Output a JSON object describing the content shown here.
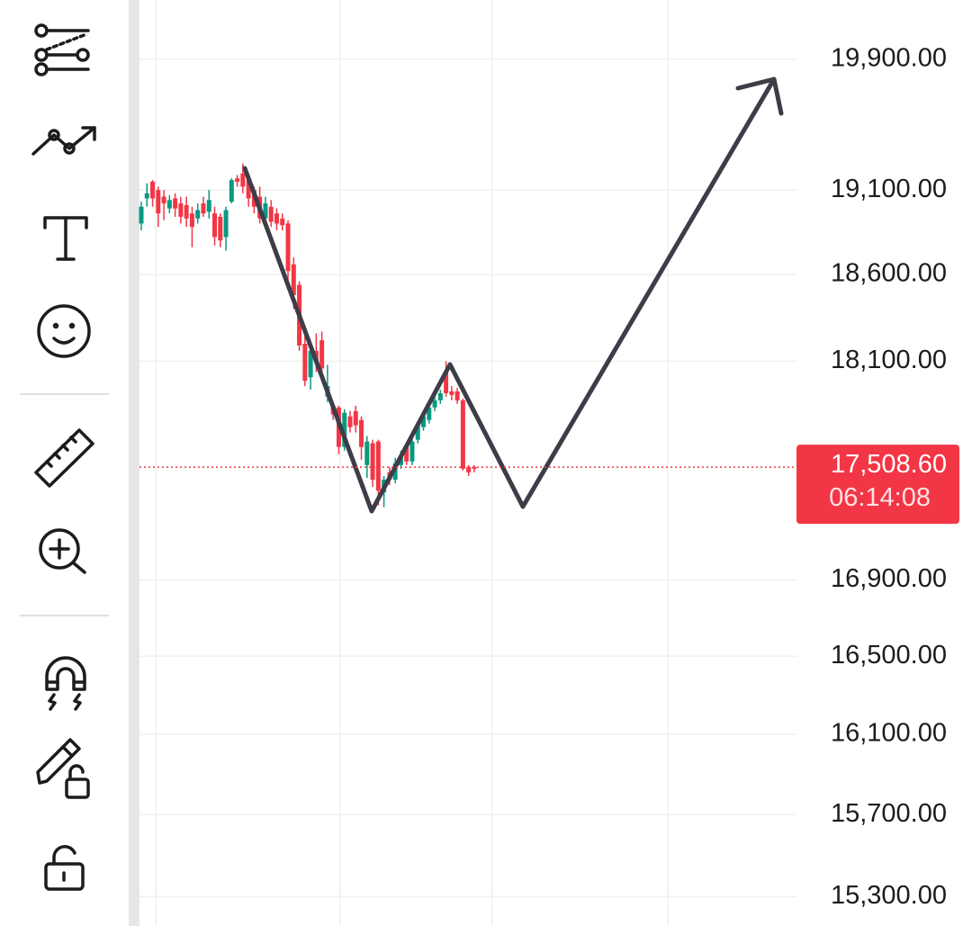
{
  "chart_data": {
    "type": "candlestick",
    "log_scale": true,
    "grid": true,
    "ylim": [
      15160,
      20274
    ],
    "yticks": [
      {
        "value": 19900,
        "label": "19,900.00"
      },
      {
        "value": 19100,
        "label": "19,100.00"
      },
      {
        "value": 18600,
        "label": "18,600.00"
      },
      {
        "value": 18100,
        "label": "18,100.00"
      },
      {
        "value": 16900,
        "label": "16,900.00"
      },
      {
        "value": 16500,
        "label": "16,500.00"
      },
      {
        "value": 16100,
        "label": "16,100.00"
      },
      {
        "value": 15700,
        "label": "15,700.00"
      },
      {
        "value": 15300,
        "label": "15,300.00"
      }
    ],
    "up_color": "#089981",
    "down_color": "#f23645",
    "open": [
      18900,
      19050,
      19150,
      19100,
      19060,
      18990,
      19050,
      19020,
      19010,
      18960,
      18930,
      19020,
      18970,
      18960,
      18940,
      18820,
      19030,
      19170,
      19200,
      19160,
      19100,
      19060,
      18930,
      19000,
      18960,
      18930,
      18900,
      18660,
      18540,
      18200,
      18010,
      18160,
      18220,
      17900,
      17850,
      17840,
      17620,
      17790,
      17820,
      17770,
      17520,
      17640,
      17650,
      17370,
      17480,
      17440,
      17520,
      17620,
      17540,
      17660,
      17730,
      17770,
      17840,
      17880,
      18040,
      17930,
      17930,
      17880,
      17510,
      17510
    ],
    "high": [
      19030,
      19140,
      19160,
      19120,
      19100,
      19070,
      19080,
      19060,
      19060,
      19000,
      19020,
      19060,
      19100,
      19000,
      18960,
      19000,
      19170,
      19190,
      19260,
      19200,
      19120,
      19120,
      19060,
      19040,
      18990,
      18960,
      18920,
      18700,
      18560,
      18260,
      18220,
      18260,
      18270,
      18080,
      17870,
      17850,
      17830,
      17820,
      17850,
      17790,
      17680,
      17660,
      17660,
      17460,
      17510,
      17560,
      17600,
      17640,
      17680,
      17760,
      17810,
      17860,
      17900,
      17940,
      18100,
      17960,
      17950,
      17890,
      17520,
      17520
    ],
    "low": [
      18860,
      19000,
      19000,
      18880,
      18920,
      18960,
      18940,
      18900,
      18880,
      18760,
      18900,
      18940,
      18930,
      18770,
      18760,
      18740,
      19020,
      19120,
      19080,
      19000,
      18960,
      18900,
      18900,
      18880,
      18860,
      18860,
      18560,
      18400,
      18160,
      17960,
      17940,
      18040,
      18020,
      17870,
      17770,
      17580,
      17600,
      17700,
      17700,
      17550,
      17450,
      17400,
      17300,
      17290,
      17410,
      17420,
      17500,
      17520,
      17520,
      17640,
      17710,
      17750,
      17820,
      17860,
      17900,
      17880,
      17860,
      17490,
      17460,
      17480
    ],
    "close": [
      19000,
      19080,
      19050,
      18960,
      19020,
      19040,
      18990,
      18940,
      18930,
      18880,
      18980,
      18960,
      19040,
      18820,
      18800,
      18980,
      19160,
      19150,
      19120,
      19050,
      19000,
      18930,
      19020,
      18910,
      18900,
      18890,
      18620,
      18480,
      18190,
      17990,
      18160,
      18100,
      18060,
      17960,
      17800,
      17620,
      17810,
      17730,
      17740,
      17620,
      17650,
      17440,
      17380,
      17440,
      17440,
      17530,
      17570,
      17540,
      17650,
      17740,
      17790,
      17840,
      17880,
      17920,
      17920,
      17910,
      17880,
      17500,
      17480,
      17500
    ],
    "last_price": {
      "value": 17508.6,
      "label": "17,508.60"
    },
    "countdown": "06:14:08"
  }
}
